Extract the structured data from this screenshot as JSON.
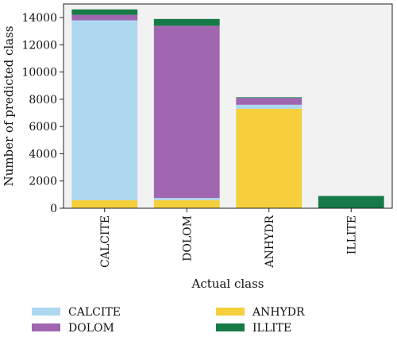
{
  "chart_data": {
    "type": "bar",
    "stacked": true,
    "categories": [
      "CALCITE",
      "DOLOM",
      "ANHYDR",
      "ILLITE"
    ],
    "series": [
      {
        "name": "ANHYDR",
        "color": "#f5cf3c",
        "values": [
          600,
          600,
          7300,
          0
        ]
      },
      {
        "name": "CALCITE",
        "color": "#add8f0",
        "values": [
          13200,
          150,
          300,
          0
        ]
      },
      {
        "name": "DOLOM",
        "color": "#a066b0",
        "values": [
          400,
          12650,
          500,
          0
        ]
      },
      {
        "name": "ILLITE",
        "color": "#157a45",
        "values": [
          400,
          500,
          50,
          900
        ]
      }
    ],
    "xlabel": "Actual class",
    "ylabel": "Number of predicted class",
    "ylim": [
      0,
      15000
    ],
    "yticks": [
      0,
      2000,
      4000,
      6000,
      8000,
      10000,
      12000,
      14000
    ],
    "grid": false,
    "plot_background": "#f2f2f2",
    "legend": {
      "placement": "bottom",
      "entries": [
        {
          "label": "CALCITE",
          "color": "#add8f0"
        },
        {
          "label": "ANHYDR",
          "color": "#f5cf3c"
        },
        {
          "label": "DOLOM",
          "color": "#a066b0"
        },
        {
          "label": "ILLITE",
          "color": "#157a45"
        }
      ]
    }
  }
}
